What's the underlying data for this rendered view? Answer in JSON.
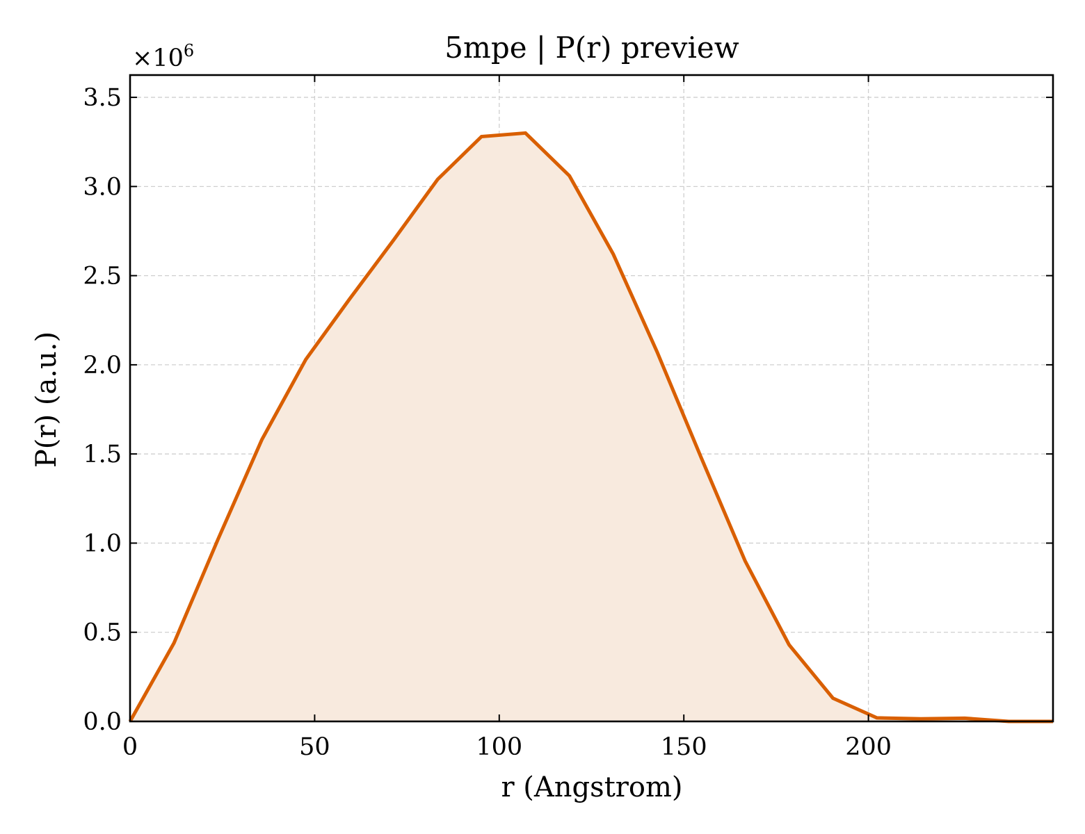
{
  "chart_data": {
    "type": "area",
    "title": "5mpe | P(r) preview",
    "xlabel": "r (Angstrom)",
    "ylabel": "P(r) (a.u.)",
    "y_scale_prefix": "×10",
    "y_scale_exponent": "6",
    "xlim": [
      0,
      250
    ],
    "ylim": [
      0,
      3.625
    ],
    "x_ticks": [
      0,
      50,
      100,
      150,
      200
    ],
    "x_tick_labels": [
      "0",
      "50",
      "100",
      "150",
      "200"
    ],
    "y_ticks": [
      0,
      0.5,
      1.0,
      1.5,
      2.0,
      2.5,
      3.0,
      3.5
    ],
    "y_tick_labels": [
      "0.0",
      "0.5",
      "1.0",
      "1.5",
      "2.0",
      "2.5",
      "3.0",
      "3.5"
    ],
    "grid": true,
    "series": [
      {
        "x": [
          0,
          11.9,
          23.8,
          35.7,
          47.6,
          59.5,
          71.4,
          83.3,
          95.2,
          107.1,
          119.0,
          130.9,
          142.8,
          154.7,
          166.6,
          178.5,
          190.4,
          202.3,
          214.2,
          226.1,
          238.0,
          250.0
        ],
        "y": [
          0.0,
          0.44,
          1.02,
          1.58,
          2.03,
          2.37,
          2.7,
          3.04,
          3.28,
          3.3,
          3.06,
          2.62,
          2.07,
          1.48,
          0.9,
          0.43,
          0.13,
          0.02,
          0.015,
          0.018,
          0.0,
          0.0
        ]
      }
    ],
    "colors": {
      "line": "#d95f02",
      "fill": "#f8eade"
    }
  }
}
